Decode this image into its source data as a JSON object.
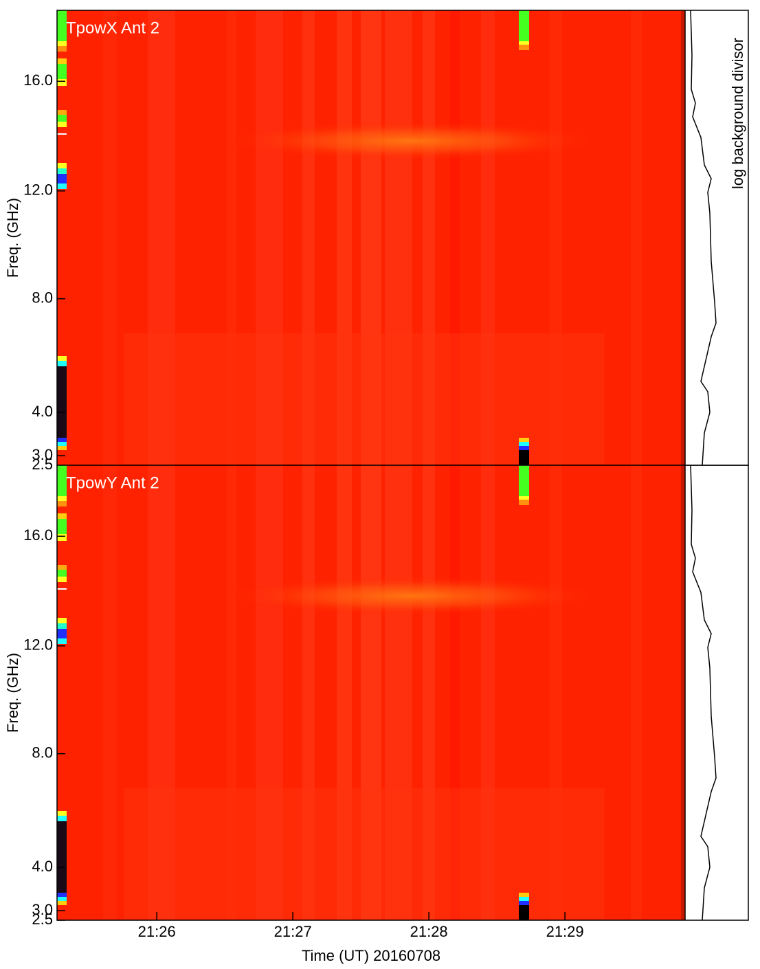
{
  "chart_data": [
    {
      "type": "spectrogram",
      "title": "TpowX Ant 2",
      "ylabel": "Freq. (GHz)",
      "side_label": "log background divisor",
      "ylim": [
        2.5,
        18.6
      ],
      "yticks": [
        2.5,
        {
          "value": 3,
          "label": "3.0"
        },
        {
          "value": 4,
          "label": "4.0"
        },
        {
          "value": 8,
          "label": "8.0"
        },
        {
          "value": 12,
          "label": "12.0"
        },
        {
          "value": 16,
          "label": "16.0"
        }
      ]
    },
    {
      "type": "spectrogram",
      "title": "TpowY Ant 2",
      "ylabel": "Freq. (GHz)",
      "xlabel": "Time (UT) 20160708",
      "ylim": [
        2.5,
        18.6
      ],
      "yticks": [
        2.5,
        {
          "value": 3,
          "label": "3.0"
        },
        {
          "value": 4,
          "label": "4.0"
        },
        {
          "value": 8,
          "label": "8.0"
        },
        {
          "value": 12,
          "label": "12.0"
        },
        {
          "value": 16,
          "label": "16.0"
        }
      ],
      "xlim": [
        "21:25:16",
        "21:29:53"
      ],
      "xticks": [
        {
          "value": "21:26:00",
          "label": "21:26"
        },
        {
          "value": "21:27:00",
          "label": "21:27"
        },
        {
          "value": "21:28:00",
          "label": "21:28"
        },
        {
          "value": "21:29:00",
          "label": "21:29"
        }
      ]
    }
  ]
}
